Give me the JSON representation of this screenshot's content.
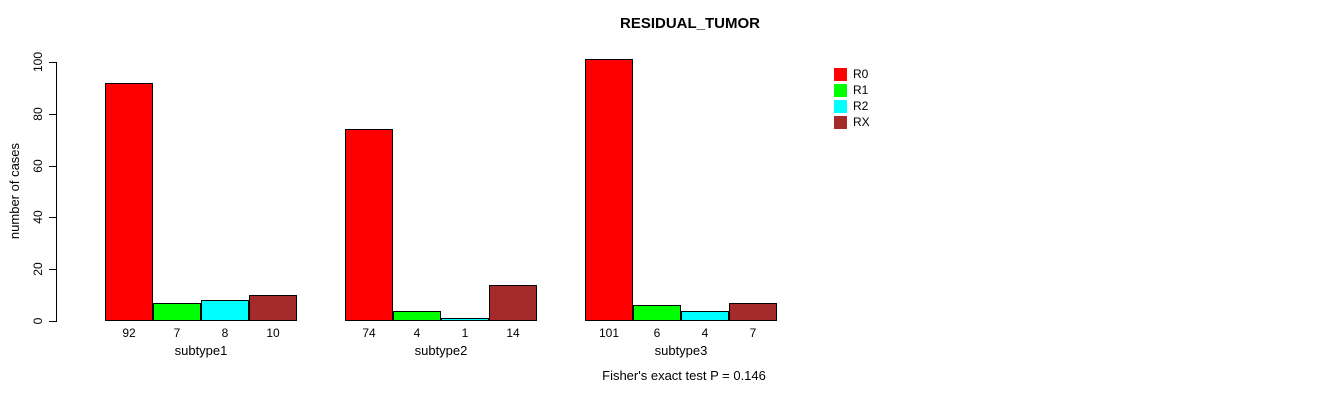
{
  "title": "RESIDUAL_TUMOR",
  "chart_data": {
    "type": "bar",
    "grouped": true,
    "title": "RESIDUAL_TUMOR",
    "categories": [
      "subtype1",
      "subtype2",
      "subtype3"
    ],
    "series": [
      {
        "name": "R0",
        "color": "#FF0000",
        "values": [
          92,
          74,
          101
        ]
      },
      {
        "name": "R1",
        "color": "#00FF00",
        "values": [
          7,
          4,
          6
        ]
      },
      {
        "name": "R2",
        "color": "#00FFFF",
        "values": [
          8,
          1,
          4
        ]
      },
      {
        "name": "RX",
        "color": "#A52A2A",
        "values": [
          10,
          14,
          7
        ]
      }
    ],
    "xlabel": "",
    "ylabel": "number of cases",
    "ylim": [
      0,
      100
    ],
    "yticks": [
      0,
      20,
      40,
      60,
      80,
      100
    ],
    "grid": false,
    "legend_position": "right",
    "bar_value_labels_shown": true,
    "footer": "Fisher's exact test P = 0.146"
  }
}
